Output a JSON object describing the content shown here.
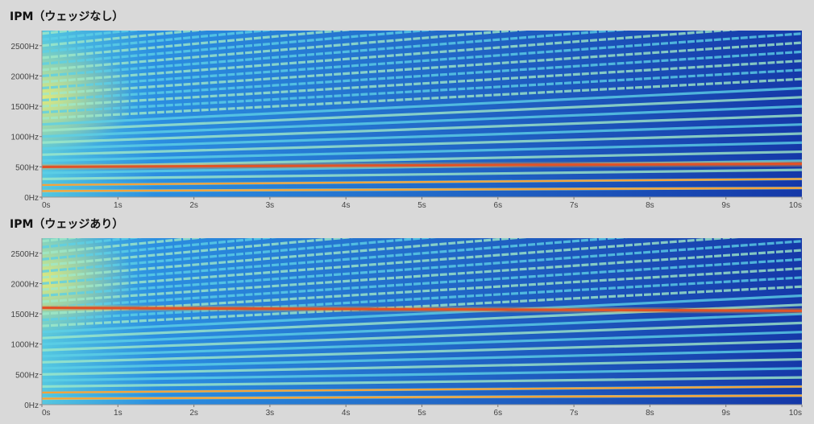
{
  "chart_data": [
    {
      "type": "heatmap",
      "title": "IPM（ウェッジなし）",
      "x_ticks": [
        "0s",
        "1s",
        "2s",
        "3s",
        "4s",
        "5s",
        "6s",
        "7s",
        "8s",
        "9s",
        "10s"
      ],
      "y_ticks": [
        "0Hz",
        "500Hz",
        "1000Hz",
        "1500Hz",
        "2000Hz",
        "2500Hz"
      ],
      "xlim": [
        0,
        10
      ],
      "ylim": [
        0,
        2750
      ],
      "colormap": [
        "#0a1c8c",
        "#1d5fd6",
        "#35b8e8",
        "#7ee0c0",
        "#e8e85a",
        "#f4a23a",
        "#d8281e"
      ],
      "fundamental_hz": [
        100,
        150
      ],
      "strong_hz": [
        500,
        550
      ]
    },
    {
      "type": "heatmap",
      "title": "IPM（ウェッジあり）",
      "x_ticks": [
        "0s",
        "1s",
        "2s",
        "3s",
        "4s",
        "5s",
        "6s",
        "7s",
        "8s",
        "9s",
        "10s"
      ],
      "y_ticks": [
        "0Hz",
        "500Hz",
        "1000Hz",
        "1500Hz",
        "2000Hz",
        "2500Hz"
      ],
      "xlim": [
        0,
        10
      ],
      "ylim": [
        0,
        2750
      ],
      "colormap": [
        "#0a1c8c",
        "#1d5fd6",
        "#35b8e8",
        "#7ee0c0",
        "#e8e85a",
        "#f4a23a",
        "#d8281e"
      ],
      "fundamental_hz": [
        100,
        150
      ],
      "strong_hz": [
        1600,
        1550
      ]
    }
  ]
}
